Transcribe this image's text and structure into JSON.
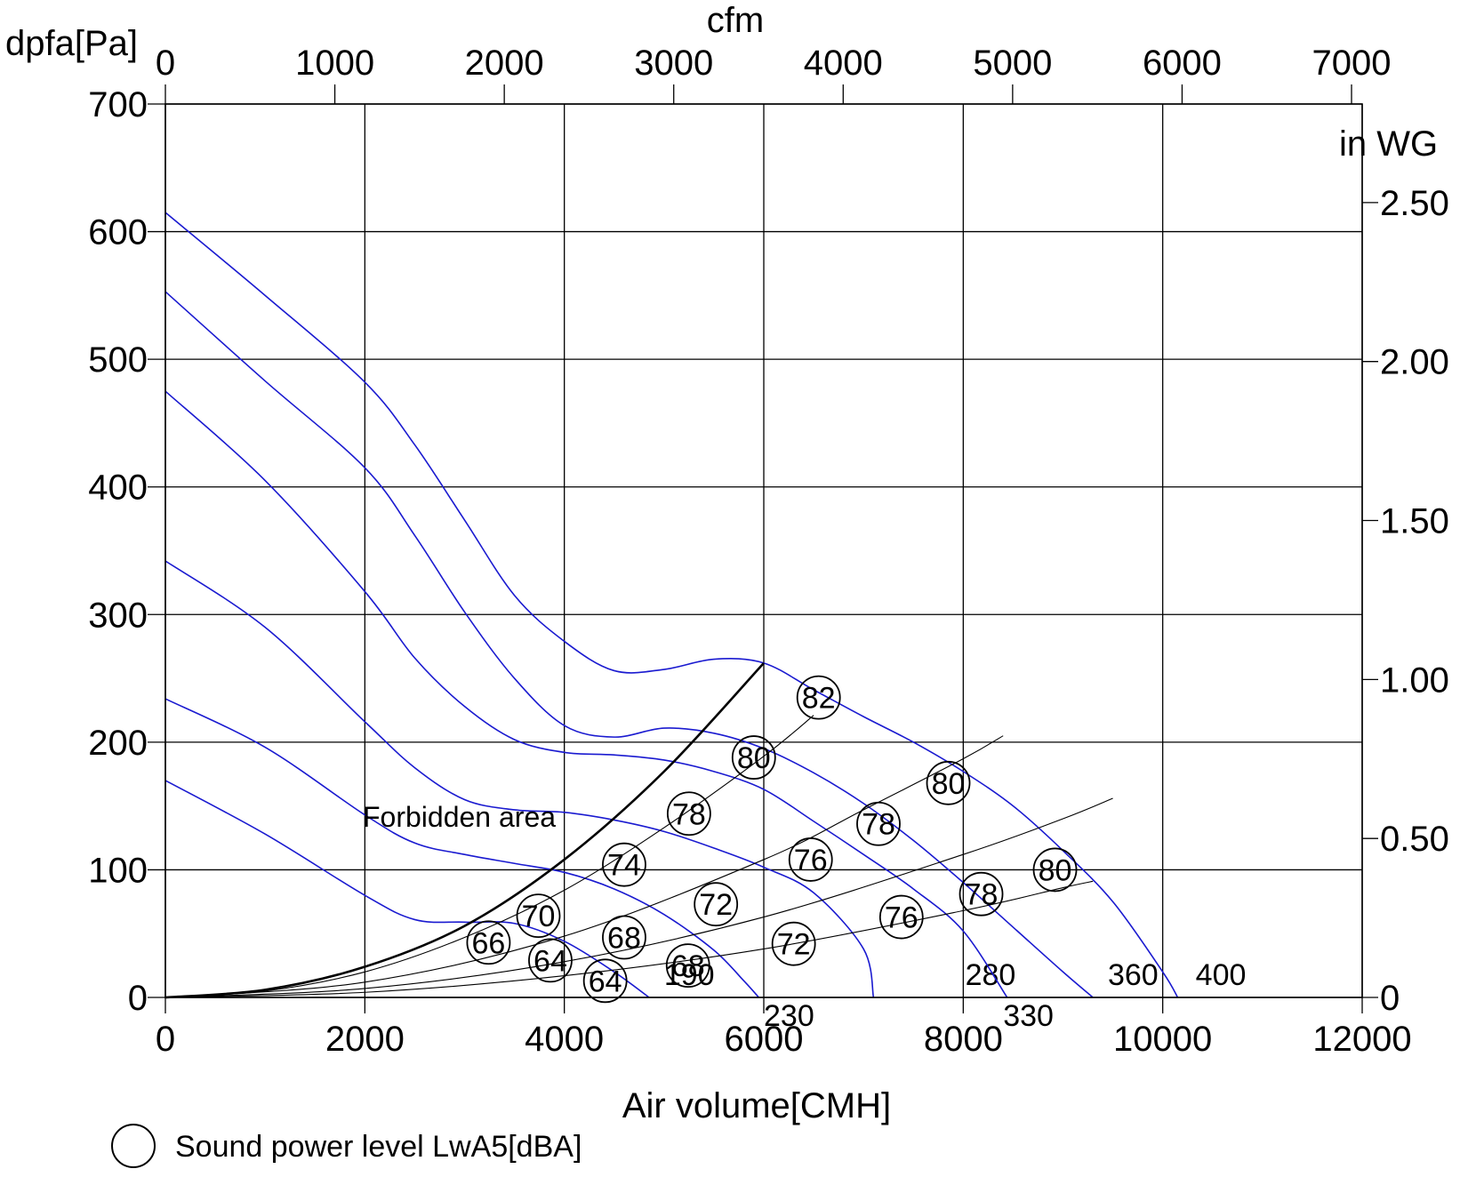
{
  "chart_data": {
    "type": "line",
    "x_axis": {
      "label": "Air volume[CMH]",
      "range": [
        0,
        12000
      ],
      "ticks": [
        "0",
        "2000",
        "4000",
        "6000",
        "8000",
        "10000",
        "12000"
      ]
    },
    "x_axis_top": {
      "label": "cfm",
      "range": [
        0,
        7062.9
      ],
      "ticks": [
        "0",
        "1000",
        "2000",
        "3000",
        "4000",
        "5000",
        "6000",
        "7000"
      ]
    },
    "y_axis": {
      "label": "dpfa[Pa]",
      "range": [
        0,
        700
      ],
      "ticks": [
        "0",
        "100",
        "200",
        "300",
        "400",
        "500",
        "600",
        "700"
      ]
    },
    "y_axis_right": {
      "label": "in WG",
      "range": [
        0,
        2.81
      ],
      "ticks": [
        "0",
        "0.50",
        "1.00",
        "1.50",
        "2.00",
        "2.50"
      ]
    },
    "grid": true,
    "series": [
      {
        "name": "190",
        "label_pos": [
          5000,
          12
        ],
        "points": [
          [
            0,
            170
          ],
          [
            1000,
            128
          ],
          [
            2000,
            80
          ],
          [
            2500,
            61
          ],
          [
            3000,
            59
          ],
          [
            3500,
            58
          ],
          [
            4000,
            44
          ],
          [
            4500,
            20
          ],
          [
            4850,
            0
          ]
        ]
      },
      {
        "name": "230",
        "label_pos": [
          6000,
          -14
        ],
        "points": [
          [
            0,
            234
          ],
          [
            1000,
            196
          ],
          [
            2000,
            143
          ],
          [
            2500,
            121
          ],
          [
            3000,
            112
          ],
          [
            3500,
            105
          ],
          [
            4000,
            98
          ],
          [
            4500,
            85
          ],
          [
            5000,
            65
          ],
          [
            5500,
            37
          ],
          [
            5800,
            13
          ],
          [
            5950,
            0
          ]
        ]
      },
      {
        "name": "280",
        "label_pos": [
          8020,
          12
        ],
        "points": [
          [
            0,
            342
          ],
          [
            1000,
            290
          ],
          [
            2000,
            216
          ],
          [
            2500,
            180
          ],
          [
            3000,
            155
          ],
          [
            3500,
            147
          ],
          [
            4000,
            145
          ],
          [
            4500,
            139
          ],
          [
            5000,
            130
          ],
          [
            5500,
            117
          ],
          [
            6000,
            102
          ],
          [
            6500,
            82
          ],
          [
            7000,
            38
          ],
          [
            7100,
            0
          ]
        ]
      },
      {
        "name": "330",
        "label_pos": [
          8400,
          -14
        ],
        "points": [
          [
            0,
            475
          ],
          [
            1000,
            405
          ],
          [
            2000,
            318
          ],
          [
            2500,
            266
          ],
          [
            3000,
            228
          ],
          [
            3500,
            202
          ],
          [
            4000,
            192
          ],
          [
            4500,
            190
          ],
          [
            5000,
            186
          ],
          [
            5500,
            177
          ],
          [
            6000,
            163
          ],
          [
            6500,
            138
          ],
          [
            7000,
            112
          ],
          [
            7500,
            85
          ],
          [
            8000,
            52
          ],
          [
            8440,
            0
          ]
        ]
      },
      {
        "name": "360",
        "label_pos": [
          9450,
          12
        ],
        "points": [
          [
            0,
            553
          ],
          [
            1000,
            483
          ],
          [
            2000,
            415
          ],
          [
            2500,
            362
          ],
          [
            3000,
            302
          ],
          [
            3500,
            250
          ],
          [
            4000,
            213
          ],
          [
            4500,
            204
          ],
          [
            5000,
            211
          ],
          [
            5500,
            207
          ],
          [
            6000,
            195
          ],
          [
            6500,
            176
          ],
          [
            7000,
            152
          ],
          [
            7500,
            123
          ],
          [
            8000,
            90
          ],
          [
            8500,
            55
          ],
          [
            9000,
            20
          ],
          [
            9300,
            0
          ]
        ]
      },
      {
        "name": "400",
        "label_pos": [
          10330,
          12
        ],
        "points": [
          [
            0,
            615
          ],
          [
            1000,
            550
          ],
          [
            2000,
            482
          ],
          [
            2500,
            433
          ],
          [
            3000,
            374
          ],
          [
            3500,
            315
          ],
          [
            4000,
            279
          ],
          [
            4500,
            256
          ],
          [
            5000,
            257
          ],
          [
            5500,
            265
          ],
          [
            6000,
            262
          ],
          [
            6500,
            241
          ],
          [
            7000,
            220
          ],
          [
            7500,
            200
          ],
          [
            8000,
            177
          ],
          [
            8500,
            150
          ],
          [
            9000,
            115
          ],
          [
            9500,
            75
          ],
          [
            10000,
            20
          ],
          [
            10150,
            0
          ]
        ]
      }
    ],
    "forbidden_line": [
      [
        0,
        0
      ],
      [
        1000,
        6
      ],
      [
        2000,
        24
      ],
      [
        3000,
        56
      ],
      [
        4000,
        108
      ],
      [
        5000,
        177
      ],
      [
        6000,
        262
      ]
    ],
    "system_lines": [
      [
        [
          0,
          0
        ],
        [
          1000,
          5
        ],
        [
          2000,
          20
        ],
        [
          3000,
          47
        ],
        [
          4000,
          84
        ],
        [
          5000,
          133
        ],
        [
          6000,
          189
        ],
        [
          6500,
          221
        ]
      ],
      [
        [
          0,
          0
        ],
        [
          2000,
          12
        ],
        [
          4000,
          48
        ],
        [
          6000,
          108
        ],
        [
          7000,
          147
        ],
        [
          8000,
          187
        ],
        [
          8400,
          205
        ]
      ],
      [
        [
          0,
          0
        ],
        [
          2000,
          7
        ],
        [
          4000,
          28
        ],
        [
          6000,
          63
        ],
        [
          8000,
          112
        ],
        [
          9000,
          140
        ],
        [
          9500,
          156
        ]
      ],
      [
        [
          0,
          0
        ],
        [
          2000,
          4
        ],
        [
          4000,
          17
        ],
        [
          6000,
          38
        ],
        [
          8000,
          68
        ],
        [
          9000,
          86
        ],
        [
          9300,
          91
        ]
      ]
    ],
    "sound_levels": [
      {
        "label": "82",
        "x": 6550,
        "y": 235
      },
      {
        "label": "80",
        "x": 5900,
        "y": 188
      },
      {
        "label": "80",
        "x": 7850,
        "y": 168
      },
      {
        "label": "80",
        "x": 8920,
        "y": 100
      },
      {
        "label": "78",
        "x": 5250,
        "y": 144
      },
      {
        "label": "78",
        "x": 7150,
        "y": 136
      },
      {
        "label": "78",
        "x": 8180,
        "y": 81
      },
      {
        "label": "76",
        "x": 6470,
        "y": 108
      },
      {
        "label": "76",
        "x": 7380,
        "y": 63
      },
      {
        "label": "74",
        "x": 4600,
        "y": 104
      },
      {
        "label": "72",
        "x": 5520,
        "y": 73
      },
      {
        "label": "72",
        "x": 6300,
        "y": 42
      },
      {
        "label": "70",
        "x": 3740,
        "y": 64
      },
      {
        "label": "68",
        "x": 4600,
        "y": 47
      },
      {
        "label": "68",
        "x": 5240,
        "y": 25
      },
      {
        "label": "66",
        "x": 3240,
        "y": 43
      },
      {
        "label": "64",
        "x": 3860,
        "y": 29
      },
      {
        "label": "64",
        "x": 4410,
        "y": 13
      }
    ],
    "annotations": [
      {
        "text": "Forbidden area",
        "x": 1970,
        "y": 140
      }
    ],
    "legend": {
      "text": "Sound power level LwA5[dBA]",
      "placement": "bottom-left"
    },
    "colors": {
      "series": "#1a1ad0",
      "grid": "#000000",
      "forbidden": "#000000"
    }
  }
}
